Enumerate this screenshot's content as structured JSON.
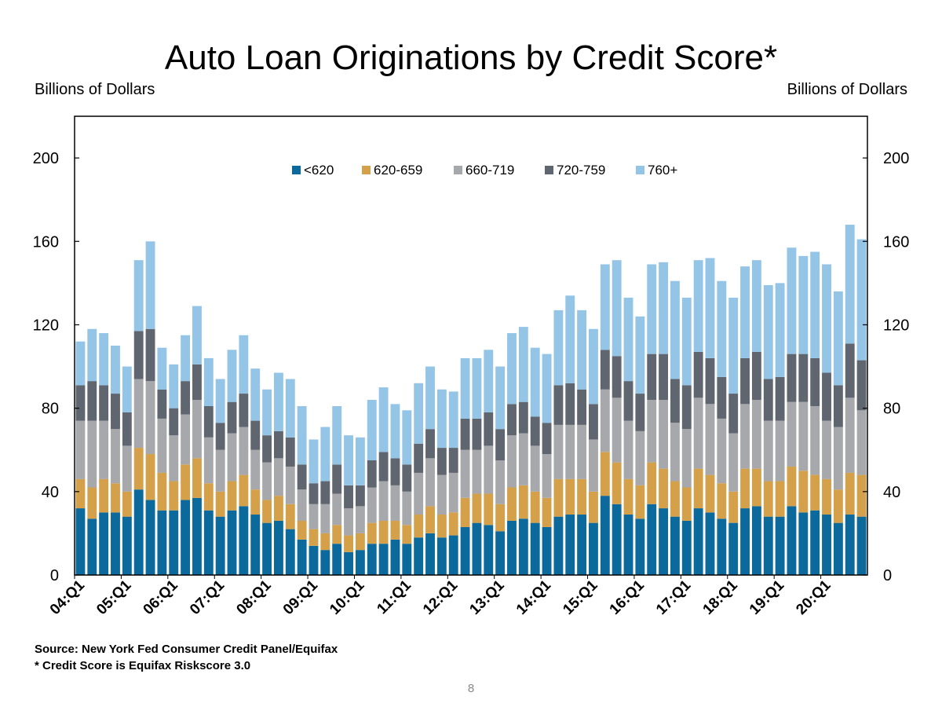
{
  "slide": {
    "page_number": "8"
  },
  "chart_data": {
    "type": "bar",
    "stacked": true,
    "title": "Auto Loan Originations by Credit Score*",
    "ylabel": "Billions of Dollars",
    "ylabel_right": "Billions of Dollars",
    "ylim": [
      0,
      220
    ],
    "yticks": [
      0,
      40,
      80,
      120,
      160,
      200
    ],
    "ytick_labels": [
      "0",
      "40",
      "80",
      "120",
      "160",
      "200"
    ],
    "grid": false,
    "legend_position": "top-center",
    "x_tick_labels": [
      "04:Q1",
      "05:Q1",
      "06:Q1",
      "07:Q1",
      "08:Q1",
      "09:Q1",
      "10:Q1",
      "11:Q1",
      "12:Q1",
      "13:Q1",
      "14:Q1",
      "15:Q1",
      "16:Q1",
      "17:Q1",
      "18:Q1",
      "19:Q1",
      "20:Q1"
    ],
    "categories": [
      "04:Q1",
      "04:Q2",
      "04:Q3",
      "04:Q4",
      "05:Q1",
      "05:Q2",
      "05:Q3",
      "05:Q4",
      "06:Q1",
      "06:Q2",
      "06:Q3",
      "06:Q4",
      "07:Q1",
      "07:Q2",
      "07:Q3",
      "07:Q4",
      "08:Q1",
      "08:Q2",
      "08:Q3",
      "08:Q4",
      "09:Q1",
      "09:Q2",
      "09:Q3",
      "09:Q4",
      "10:Q1",
      "10:Q2",
      "10:Q3",
      "10:Q4",
      "11:Q1",
      "11:Q2",
      "11:Q3",
      "11:Q4",
      "12:Q1",
      "12:Q2",
      "12:Q3",
      "12:Q4",
      "13:Q1",
      "13:Q2",
      "13:Q3",
      "13:Q4",
      "14:Q1",
      "14:Q2",
      "14:Q3",
      "14:Q4",
      "15:Q1",
      "15:Q2",
      "15:Q3",
      "15:Q4",
      "16:Q1",
      "16:Q2",
      "16:Q3",
      "16:Q4",
      "17:Q1",
      "17:Q2",
      "17:Q3",
      "17:Q4",
      "18:Q1",
      "18:Q2",
      "18:Q3",
      "18:Q4",
      "19:Q1",
      "19:Q2",
      "19:Q3",
      "19:Q4",
      "20:Q1",
      "20:Q2",
      "20:Q3",
      "20:Q4"
    ],
    "series": [
      {
        "name": "<620",
        "color": "#0B6A9B",
        "values": [
          32,
          27,
          30,
          30,
          28,
          41,
          36,
          31,
          31,
          36,
          37,
          31,
          28,
          31,
          33,
          29,
          25,
          26,
          22,
          17,
          14,
          12,
          15,
          11,
          12,
          15,
          15,
          17,
          15,
          18,
          20,
          18,
          19,
          23,
          25,
          24,
          21,
          26,
          27,
          25,
          23,
          28,
          29,
          29,
          25,
          38,
          34,
          29,
          27,
          34,
          32,
          28,
          26,
          32,
          30,
          27,
          25,
          32,
          33,
          28,
          28,
          33,
          30,
          31,
          29,
          25,
          29,
          28
        ]
      },
      {
        "name": "620-659",
        "color": "#D4A04A",
        "values": [
          14,
          15,
          16,
          14,
          12,
          20,
          22,
          18,
          14,
          17,
          19,
          13,
          12,
          14,
          15,
          12,
          11,
          12,
          12,
          9,
          8,
          8,
          9,
          8,
          8,
          10,
          11,
          9,
          9,
          11,
          13,
          11,
          11,
          14,
          14,
          15,
          13,
          16,
          16,
          15,
          14,
          18,
          17,
          17,
          15,
          21,
          20,
          17,
          16,
          20,
          19,
          17,
          16,
          19,
          18,
          17,
          15,
          19,
          18,
          17,
          17,
          19,
          20,
          17,
          17,
          16,
          20,
          20
        ]
      },
      {
        "name": "660-719",
        "color": "#A6A8AB",
        "values": [
          28,
          32,
          28,
          26,
          22,
          33,
          35,
          26,
          22,
          24,
          28,
          22,
          20,
          23,
          23,
          19,
          18,
          18,
          18,
          15,
          12,
          14,
          15,
          13,
          13,
          17,
          19,
          17,
          16,
          20,
          23,
          19,
          19,
          23,
          21,
          23,
          21,
          25,
          25,
          22,
          21,
          26,
          26,
          26,
          25,
          30,
          31,
          28,
          26,
          30,
          33,
          28,
          28,
          34,
          34,
          31,
          28,
          31,
          33,
          29,
          29,
          31,
          33,
          33,
          28,
          30,
          36,
          31
        ]
      },
      {
        "name": "720-759",
        "color": "#60666F",
        "values": [
          17,
          19,
          17,
          17,
          16,
          23,
          25,
          14,
          13,
          16,
          17,
          15,
          13,
          15,
          16,
          14,
          13,
          13,
          14,
          12,
          10,
          11,
          14,
          11,
          10,
          13,
          14,
          13,
          13,
          14,
          14,
          13,
          12,
          15,
          15,
          16,
          15,
          15,
          15,
          14,
          15,
          19,
          20,
          17,
          17,
          19,
          20,
          19,
          18,
          22,
          22,
          21,
          21,
          22,
          22,
          20,
          19,
          22,
          23,
          20,
          21,
          23,
          23,
          23,
          23,
          20,
          26,
          24
        ]
      },
      {
        "name": "760+",
        "color": "#94C5E7",
        "values": [
          21,
          25,
          25,
          23,
          22,
          34,
          42,
          20,
          21,
          22,
          28,
          23,
          21,
          25,
          28,
          25,
          22,
          28,
          28,
          28,
          21,
          26,
          28,
          24,
          23,
          29,
          31,
          26,
          26,
          29,
          30,
          28,
          27,
          29,
          29,
          30,
          30,
          34,
          36,
          33,
          33,
          36,
          42,
          38,
          36,
          41,
          46,
          40,
          37,
          43,
          44,
          47,
          42,
          44,
          48,
          46,
          46,
          44,
          44,
          45,
          45,
          51,
          47,
          51,
          52,
          45,
          57,
          58
        ]
      }
    ],
    "source": "Source: New York Fed Consumer Credit Panel/Equifax",
    "note": "* Credit Score is Equifax Riskscore 3.0"
  }
}
